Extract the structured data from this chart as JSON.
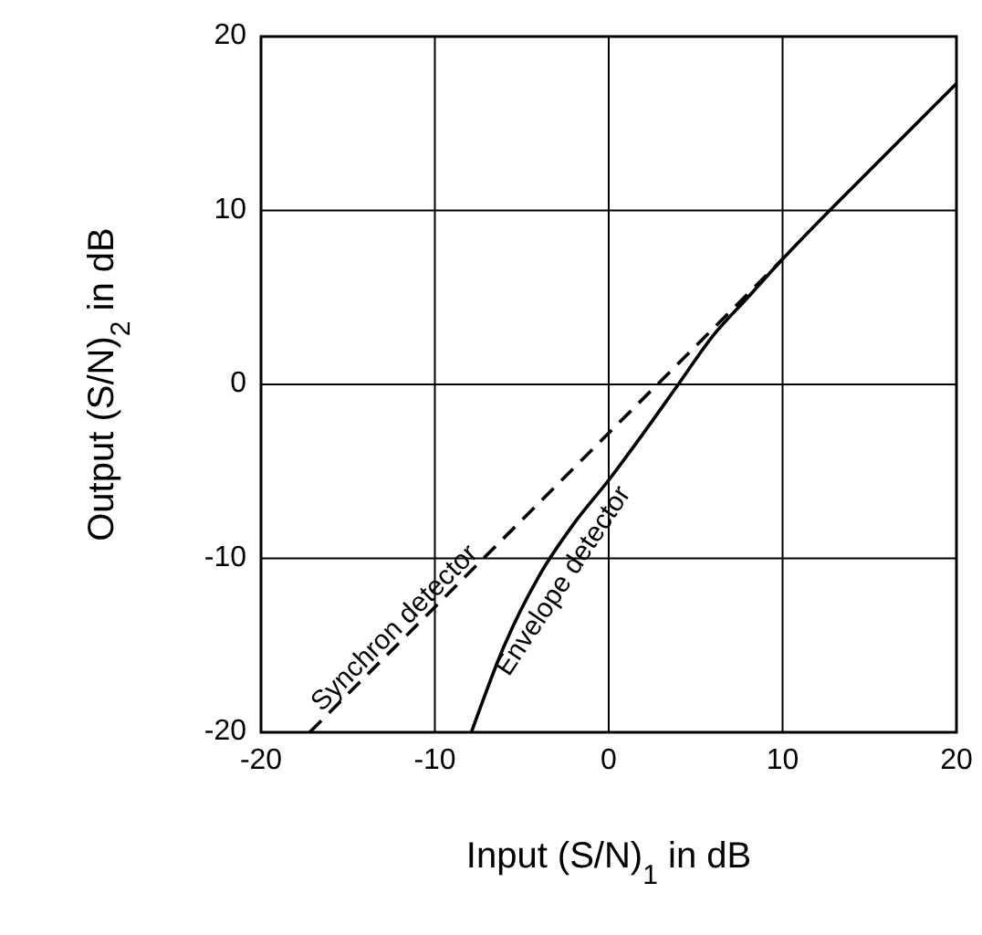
{
  "chart_data": {
    "type": "line",
    "xlabel": "Input (S/N)$_{1}$ in dB",
    "ylabel": "Output (S/N)$_{2}$ in dB",
    "xlim": [
      -20,
      20
    ],
    "ylim": [
      -20,
      20
    ],
    "xticks": [
      -20,
      -10,
      0,
      10,
      20
    ],
    "yticks": [
      -20,
      -10,
      0,
      10,
      20
    ],
    "grid": true,
    "series": [
      {
        "name": "Synchron detector",
        "color": "#000000",
        "line_style": "dashed",
        "x": [
          -17.2,
          10
        ],
        "values": [
          -20,
          7.2
        ]
      },
      {
        "name": "Envelope detector",
        "color": "#000000",
        "line_style": "solid",
        "x": [
          -7.9,
          -6,
          -4,
          -2,
          0,
          2,
          4,
          6,
          8,
          10,
          15,
          20
        ],
        "values": [
          -20,
          -15,
          -11,
          -8,
          -5.5,
          -2.8,
          0,
          2.8,
          5,
          7.2,
          12.3,
          17.3
        ]
      }
    ]
  }
}
